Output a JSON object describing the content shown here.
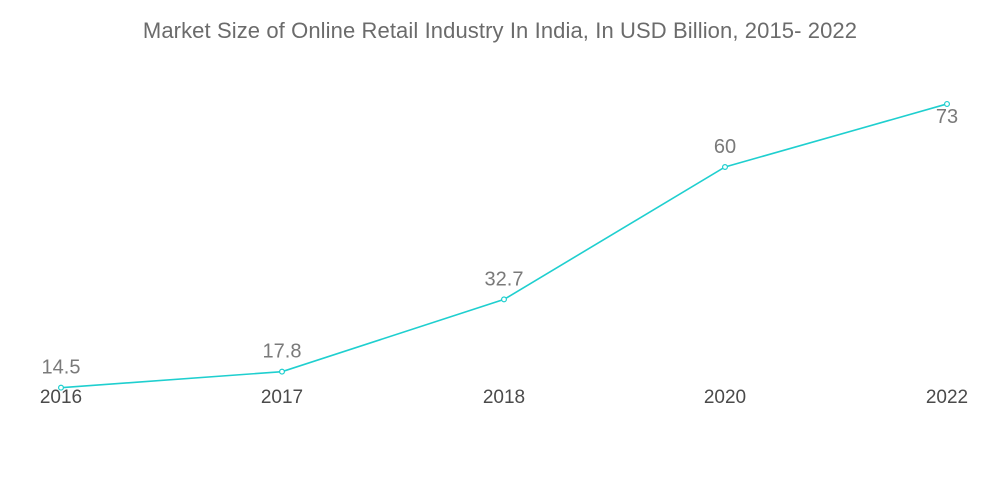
{
  "chart_data": {
    "type": "line",
    "title": "Market Size of Online Retail Industry In India, In USD Billion, 2015- 2022",
    "xlabel": "",
    "ylabel": "",
    "categories": [
      "2016",
      "2017",
      "2018",
      "2020",
      "2022"
    ],
    "series": [
      {
        "name": "Market Size (USD Billion)",
        "values": [
          14.5,
          17.8,
          32.7,
          60,
          73
        ],
        "labels": [
          "14.5",
          "17.8",
          "32.7",
          "60",
          "73"
        ],
        "color": "#1fcfcf"
      }
    ],
    "ylim": [
      0,
      80
    ],
    "grid": false,
    "legend": "none"
  }
}
